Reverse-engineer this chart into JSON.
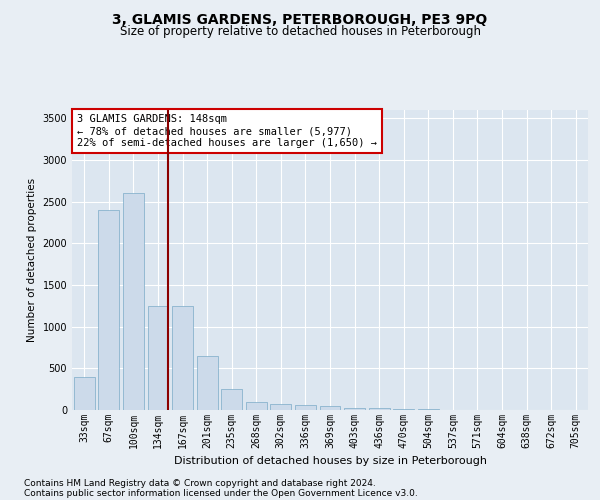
{
  "title": "3, GLAMIS GARDENS, PETERBOROUGH, PE3 9PQ",
  "subtitle": "Size of property relative to detached houses in Peterborough",
  "xlabel": "Distribution of detached houses by size in Peterborough",
  "ylabel": "Number of detached properties",
  "footnote1": "Contains HM Land Registry data © Crown copyright and database right 2024.",
  "footnote2": "Contains public sector information licensed under the Open Government Licence v3.0.",
  "annotation_line1": "3 GLAMIS GARDENS: 148sqm",
  "annotation_line2": "← 78% of detached houses are smaller (5,977)",
  "annotation_line3": "22% of semi-detached houses are larger (1,650) →",
  "bar_labels": [
    "33sqm",
    "67sqm",
    "100sqm",
    "134sqm",
    "167sqm",
    "201sqm",
    "235sqm",
    "268sqm",
    "302sqm",
    "336sqm",
    "369sqm",
    "403sqm",
    "436sqm",
    "470sqm",
    "504sqm",
    "537sqm",
    "571sqm",
    "604sqm",
    "638sqm",
    "672sqm",
    "705sqm"
  ],
  "bar_heights": [
    400,
    2400,
    2600,
    1250,
    1250,
    650,
    250,
    100,
    70,
    60,
    50,
    30,
    20,
    15,
    10,
    5,
    5,
    5,
    5,
    3,
    2
  ],
  "bar_color": "#ccdaea",
  "bar_edge_color": "#7aaac8",
  "red_line_index": 3.42,
  "ylim": [
    0,
    3600
  ],
  "yticks": [
    0,
    500,
    1000,
    1500,
    2000,
    2500,
    3000,
    3500
  ],
  "bg_color": "#e8eef4",
  "plot_bg_color": "#dce6f0",
  "grid_color": "#ffffff",
  "red_line_color": "#8b0000",
  "title_fontsize": 10,
  "subtitle_fontsize": 8.5,
  "xlabel_fontsize": 8,
  "ylabel_fontsize": 7.5,
  "tick_fontsize": 7,
  "annot_fontsize": 7.5,
  "footnote_fontsize": 6.5
}
